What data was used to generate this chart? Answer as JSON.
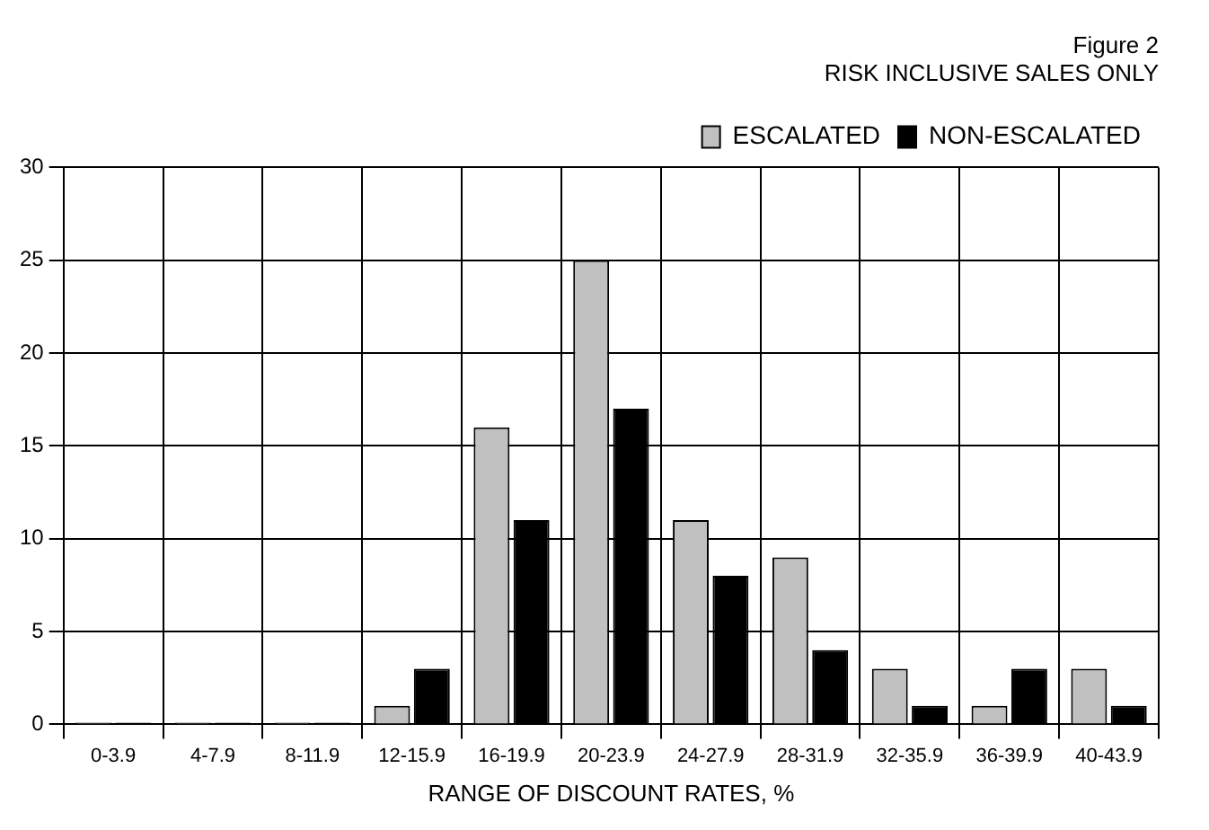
{
  "chart_data": {
    "type": "bar",
    "title": [
      "Figure 2",
      "RISK INCLUSIVE SALES ONLY"
    ],
    "xlabel": "RANGE OF DISCOUNT RATES, %",
    "categories": [
      "0-3.9",
      "4-7.9",
      "8-11.9",
      "12-15.9",
      "16-19.9",
      "20-23.9",
      "24-27.9",
      "28-31.9",
      "32-35.9",
      "36-39.9",
      "40-43.9"
    ],
    "series": [
      {
        "name": "ESCALATED",
        "color": "#c0c0c0",
        "values": [
          0,
          0,
          0,
          1,
          16,
          25,
          11,
          9,
          3,
          1,
          3
        ]
      },
      {
        "name": "NON-ESCALATED",
        "color": "#000000",
        "values": [
          0,
          0,
          0,
          3,
          11,
          17,
          8,
          4,
          1,
          3,
          1
        ]
      }
    ],
    "ylim": [
      0,
      30
    ],
    "yticks": [
      0,
      5,
      10,
      15,
      20,
      25,
      30
    ],
    "grid": true,
    "legend": "top right"
  }
}
